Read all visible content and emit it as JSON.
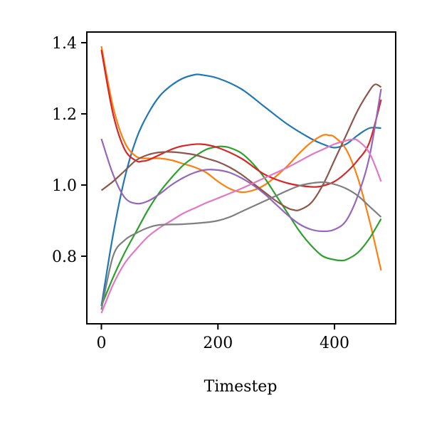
{
  "chart_data": {
    "type": "line",
    "xlabel": "Timestep",
    "ylabel": "",
    "title": "",
    "xlim": [
      -25,
      505
    ],
    "ylim": [
      0.61,
      1.43
    ],
    "xticks": [
      0,
      200,
      400
    ],
    "xtick_labels": [
      "0",
      "200",
      "400"
    ],
    "yticks": [
      0.8,
      1.0,
      1.2,
      1.4
    ],
    "ytick_labels": [
      "0.8",
      "1.0",
      "1.2",
      "1.4"
    ],
    "grid": false,
    "legend": "none",
    "series": [
      {
        "color": "#1f77b4",
        "x": [
          0,
          20,
          40,
          60,
          80,
          100,
          120,
          140,
          160,
          170,
          200,
          240,
          280,
          320,
          360,
          380,
          400,
          420,
          440,
          460,
          480
        ],
        "y": [
          0.66,
          0.86,
          1.02,
          1.13,
          1.2,
          1.25,
          1.28,
          1.3,
          1.31,
          1.31,
          1.3,
          1.27,
          1.22,
          1.17,
          1.13,
          1.115,
          1.105,
          1.115,
          1.14,
          1.16,
          1.16
        ]
      },
      {
        "color": "#ff7f0e",
        "x": [
          0,
          20,
          40,
          60,
          80,
          100,
          120,
          140,
          160,
          180,
          200,
          220,
          240,
          260,
          280,
          300,
          320,
          340,
          360,
          380,
          390,
          400,
          420,
          440,
          460,
          480
        ],
        "y": [
          1.39,
          1.22,
          1.12,
          1.08,
          1.075,
          1.075,
          1.07,
          1.06,
          1.05,
          1.035,
          1.01,
          0.99,
          0.98,
          0.985,
          1.0,
          1.025,
          1.055,
          1.09,
          1.12,
          1.14,
          1.14,
          1.135,
          1.1,
          1.02,
          0.9,
          0.76
        ]
      },
      {
        "color": "#2ca02c",
        "x": [
          0,
          20,
          40,
          60,
          80,
          100,
          120,
          140,
          160,
          180,
          200,
          210,
          220,
          240,
          260,
          280,
          300,
          320,
          340,
          360,
          380,
          400,
          410,
          420,
          440,
          460,
          480
        ],
        "y": [
          0.66,
          0.74,
          0.81,
          0.87,
          0.93,
          0.98,
          1.02,
          1.055,
          1.08,
          1.1,
          1.108,
          1.108,
          1.105,
          1.09,
          1.06,
          1.02,
          0.97,
          0.92,
          0.87,
          0.83,
          0.8,
          0.79,
          0.788,
          0.79,
          0.81,
          0.85,
          0.905
        ]
      },
      {
        "color": "#d62728",
        "x": [
          0,
          20,
          40,
          60,
          70,
          80,
          100,
          120,
          140,
          170,
          200,
          240,
          280,
          320,
          360,
          380,
          400,
          420,
          440,
          460,
          480
        ],
        "y": [
          1.38,
          1.2,
          1.1,
          1.068,
          1.067,
          1.07,
          1.085,
          1.1,
          1.11,
          1.115,
          1.105,
          1.075,
          1.03,
          1.005,
          0.995,
          0.998,
          1.01,
          1.035,
          1.07,
          1.12,
          1.24
        ]
      },
      {
        "color": "#9467bd",
        "x": [
          0,
          20,
          40,
          60,
          80,
          100,
          120,
          140,
          160,
          180,
          200,
          220,
          240,
          260,
          280,
          300,
          320,
          340,
          360,
          380,
          400,
          420,
          440,
          460,
          480
        ],
        "y": [
          1.13,
          1.03,
          0.965,
          0.948,
          0.955,
          0.975,
          1.0,
          1.02,
          1.035,
          1.043,
          1.042,
          1.035,
          1.02,
          1.0,
          0.975,
          0.945,
          0.915,
          0.89,
          0.875,
          0.87,
          0.875,
          0.9,
          0.97,
          1.08,
          1.27
        ]
      },
      {
        "color": "#8c564b",
        "x": [
          0,
          20,
          40,
          60,
          80,
          100,
          120,
          140,
          160,
          180,
          200,
          220,
          240,
          260,
          280,
          300,
          320,
          330,
          340,
          360,
          380,
          400,
          420,
          440,
          460,
          470,
          480
        ],
        "y": [
          0.985,
          1.01,
          1.04,
          1.07,
          1.085,
          1.092,
          1.093,
          1.09,
          1.085,
          1.075,
          1.065,
          1.05,
          1.03,
          1.005,
          0.98,
          0.955,
          0.935,
          0.93,
          0.93,
          0.95,
          1.0,
          1.07,
          1.14,
          1.21,
          1.265,
          1.283,
          1.275
        ]
      },
      {
        "color": "#e377c2",
        "x": [
          0,
          20,
          40,
          60,
          80,
          100,
          120,
          140,
          160,
          180,
          200,
          240,
          280,
          320,
          360,
          380,
          400,
          420,
          430,
          440,
          460,
          480
        ],
        "y": [
          0.64,
          0.72,
          0.78,
          0.82,
          0.855,
          0.88,
          0.9,
          0.92,
          0.935,
          0.95,
          0.963,
          0.99,
          1.02,
          1.05,
          1.085,
          1.1,
          1.115,
          1.125,
          1.128,
          1.125,
          1.09,
          1.01
        ]
      },
      {
        "color": "#7f7f7f",
        "x": [
          0,
          20,
          40,
          60,
          80,
          100,
          140,
          180,
          200,
          220,
          240,
          260,
          280,
          300,
          320,
          340,
          360,
          380,
          400,
          420,
          440,
          460,
          480
        ],
        "y": [
          0.65,
          0.8,
          0.845,
          0.865,
          0.88,
          0.888,
          0.89,
          0.895,
          0.9,
          0.91,
          0.925,
          0.94,
          0.955,
          0.97,
          0.985,
          0.998,
          1.005,
          1.008,
          1.002,
          0.99,
          0.97,
          0.94,
          0.91
        ]
      }
    ]
  }
}
